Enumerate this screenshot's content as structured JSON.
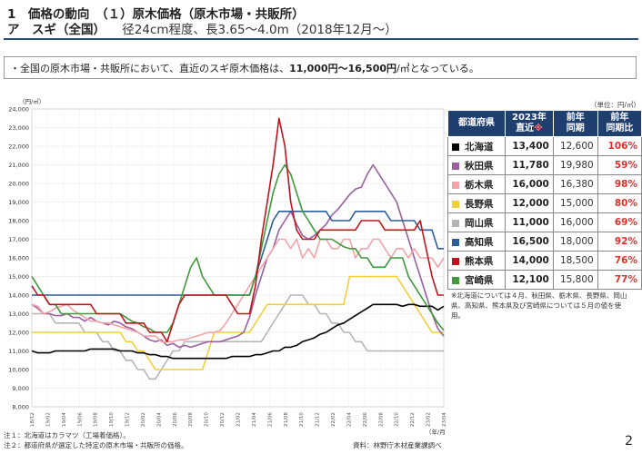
{
  "header": {
    "title_line1": "1　価格の動向　（１）原木価格（原木市場・共販所）",
    "title_line2_main": "ア　スギ（全国）",
    "title_line2_sub": "径24cm程度、長3.65～4.0m（2018年12月～）"
  },
  "summary": {
    "prefix": "・全国の原木市場・共販所において、直近のスギ原木価格は、",
    "highlight": "11,000円～16,500円",
    "suffix": "/㎥となっている。"
  },
  "chart_data": {
    "type": "line",
    "ylabel": "（円/㎥）",
    "ylim": [
      8000,
      24000
    ],
    "yticks": [
      8000,
      9000,
      10000,
      11000,
      12000,
      13000,
      14000,
      15000,
      16000,
      17000,
      18000,
      19000,
      20000,
      21000,
      22000,
      23000,
      24000
    ],
    "ytick_labels": [
      "8,000",
      "9,000",
      "10,000",
      "11,000",
      "12,000",
      "13,000",
      "14,000",
      "15,000",
      "16,000",
      "17,000",
      "18,000",
      "19,000",
      "20,000",
      "21,000",
      "22,000",
      "23,000",
      "24,000"
    ],
    "x_tick_labels": [
      "18/12",
      "19/02",
      "19/04",
      "19/06",
      "19/08",
      "19/10",
      "19/12",
      "20/02",
      "20/04",
      "20/06",
      "20/08",
      "20/10",
      "20/12",
      "21/02",
      "21/04",
      "21/06",
      "21/08",
      "21/10",
      "21/12",
      "22/02",
      "22/04",
      "22/06",
      "22/08",
      "22/10",
      "22/12",
      "23/02",
      "23/04"
    ],
    "xlabel_right": "（年/月）",
    "grid": true,
    "series": [
      {
        "name": "北海道",
        "color": "#000000",
        "values": [
          11000,
          10900,
          10900,
          10900,
          11000,
          11000,
          11000,
          11000,
          11000,
          11000,
          11100,
          11100,
          11100,
          11100,
          11100,
          11000,
          11000,
          11000,
          10900,
          10900,
          10800,
          10800,
          10700,
          10700,
          10600,
          10600,
          10600,
          10600,
          10600,
          10600,
          10600,
          10600,
          10600,
          10600,
          10700,
          10700,
          10700,
          10700,
          10800,
          10800,
          10900,
          11000,
          11000,
          11200,
          11200,
          11300,
          11500,
          11600,
          11700,
          11900,
          12000,
          12200,
          12400,
          12500,
          12700,
          12900,
          13100,
          13300,
          13500,
          13500,
          13500,
          13500,
          13500,
          13400,
          13500,
          13500,
          13400,
          13400,
          13400,
          13200,
          13400
        ]
      },
      {
        "name": "秋田県",
        "color": "#9a5fa0",
        "values": [
          13500,
          13300,
          13000,
          13000,
          12900,
          12900,
          13000,
          12800,
          12800,
          12600,
          12800,
          12600,
          12500,
          12400,
          12600,
          12500,
          12300,
          12200,
          12000,
          11800,
          11600,
          11500,
          11600,
          11300,
          11400,
          11200,
          11300,
          11200,
          11300,
          11400,
          11500,
          11500,
          11500,
          11600,
          11700,
          11800,
          12000,
          12800,
          14000,
          15000,
          16000,
          16500,
          17500,
          18000,
          18500,
          17800,
          17200,
          17000,
          17200,
          17500,
          17800,
          18300,
          18600,
          19000,
          19400,
          19700,
          19800,
          20500,
          21000,
          20500,
          20000,
          19500,
          19000,
          18000,
          17000,
          16000,
          15000,
          14000,
          13000,
          12200,
          11800
        ]
      },
      {
        "name": "栃木県",
        "color": "#f4a3a8",
        "values": [
          13500,
          13400,
          13000,
          13100,
          13300,
          13400,
          13500,
          13200,
          13000,
          12800,
          12600,
          12600,
          12500,
          12500,
          12400,
          12300,
          12200,
          12100,
          12000,
          11800,
          11800,
          11800,
          11500,
          11500,
          11500,
          11600,
          11600,
          11700,
          11800,
          11900,
          12000,
          12000,
          12100,
          12500,
          13000,
          13500,
          14000,
          14500,
          15000,
          15500,
          16000,
          16500,
          17000,
          17000,
          16500,
          17000,
          16000,
          16500,
          16000,
          17000,
          17000,
          16500,
          16500,
          17000,
          17000,
          16000,
          16500,
          16500,
          17000,
          17000,
          16500,
          16000,
          16500,
          16500,
          16000,
          16500,
          16000,
          16000,
          16000,
          15500,
          16000
        ]
      },
      {
        "name": "長野県",
        "color": "#f2cf3a",
        "values": [
          12000,
          12000,
          12000,
          12000,
          12000,
          12000,
          12000,
          12000,
          12000,
          12000,
          12000,
          12000,
          12000,
          12000,
          12000,
          12000,
          11500,
          11500,
          11000,
          11000,
          10500,
          10000,
          10000,
          10000,
          10000,
          10000,
          10000,
          10000,
          10000,
          10000,
          11000,
          12000,
          12000,
          12000,
          12000,
          12000,
          12000,
          12000,
          12500,
          13000,
          13500,
          13500,
          13500,
          13500,
          13500,
          13500,
          13500,
          13500,
          13500,
          13500,
          13500,
          13500,
          13500,
          13500,
          15000,
          15000,
          15000,
          15000,
          15000,
          15000,
          15000,
          15000,
          15000,
          14500,
          14000,
          13500,
          13000,
          12500,
          12000,
          12000,
          12000
        ]
      },
      {
        "name": "岡山県",
        "color": "#b5b5b5",
        "values": [
          13000,
          13000,
          13000,
          13000,
          12500,
          12500,
          12500,
          12500,
          12500,
          12000,
          12000,
          12000,
          11500,
          11500,
          11000,
          11000,
          10500,
          10500,
          10000,
          10000,
          9500,
          9500,
          10000,
          10500,
          11000,
          11000,
          11500,
          11500,
          11500,
          11500,
          11500,
          11500,
          11500,
          11500,
          11500,
          11500,
          11500,
          11500,
          11500,
          11500,
          12000,
          12500,
          13000,
          13500,
          14000,
          14000,
          14000,
          13500,
          13500,
          13000,
          13000,
          12500,
          12500,
          12000,
          12000,
          11500,
          11500,
          11000,
          11000,
          11000,
          11000,
          11000,
          11000,
          11000,
          11000,
          11000,
          11000,
          11000,
          11000,
          11000,
          11000
        ]
      },
      {
        "name": "高知県",
        "color": "#2f5f9b",
        "values": [
          14000,
          14000,
          14000,
          14000,
          14000,
          14000,
          14000,
          14000,
          14000,
          14000,
          14000,
          14000,
          14000,
          14000,
          14000,
          14000,
          14000,
          14000,
          14000,
          14000,
          14000,
          14000,
          14000,
          14000,
          14000,
          14000,
          14000,
          14000,
          14000,
          14000,
          14000,
          14000,
          14000,
          14000,
          14000,
          14000,
          14000,
          14000,
          15000,
          16000,
          17000,
          18000,
          18500,
          18500,
          18500,
          18500,
          18500,
          18500,
          18500,
          18500,
          18500,
          18000,
          18000,
          18000,
          18000,
          18500,
          18500,
          18500,
          18500,
          18500,
          18500,
          18000,
          18000,
          18000,
          18000,
          18000,
          17500,
          17500,
          17500,
          16500,
          16500
        ]
      },
      {
        "name": "熊本県",
        "color": "#c0141c",
        "values": [
          14500,
          14000,
          14000,
          13500,
          13500,
          13500,
          13500,
          13500,
          13500,
          13500,
          13500,
          13000,
          13000,
          13000,
          13000,
          13000,
          12500,
          12500,
          12500,
          12500,
          12000,
          12000,
          12000,
          11500,
          12500,
          13500,
          14000,
          14000,
          14000,
          14000,
          14000,
          14000,
          14000,
          14000,
          13500,
          13000,
          13000,
          13000,
          14500,
          17000,
          19000,
          21000,
          23500,
          22000,
          19000,
          17500,
          17000,
          17000,
          17000,
          17500,
          17500,
          17500,
          17500,
          17500,
          17500,
          17500,
          18000,
          18000,
          18000,
          18000,
          17500,
          17500,
          17500,
          17500,
          17500,
          17500,
          18000,
          16500,
          15000,
          14000,
          14000
        ]
      },
      {
        "name": "宮崎県",
        "color": "#3e9a3b",
        "values": [
          15000,
          14500,
          14000,
          13500,
          13500,
          13000,
          13000,
          13000,
          13000,
          13000,
          13000,
          13000,
          13000,
          13000,
          13000,
          13000,
          12800,
          12600,
          12500,
          12300,
          12200,
          12000,
          12000,
          12000,
          12500,
          13500,
          14500,
          15500,
          16000,
          15000,
          14500,
          14000,
          14000,
          14000,
          14000,
          14000,
          14000,
          14000,
          15000,
          16500,
          18000,
          19500,
          20500,
          21000,
          20500,
          19500,
          18500,
          18000,
          17500,
          17000,
          17000,
          17000,
          16800,
          16600,
          16500,
          16500,
          16000,
          16000,
          15500,
          15500,
          15500,
          16000,
          16000,
          16000,
          15000,
          14500,
          14000,
          13500,
          13000,
          12500,
          12100
        ]
      }
    ]
  },
  "legend": {
    "unit": "（単位：円/㎥）",
    "headers": {
      "pref": "都道府県",
      "cur_line1": "2023年",
      "cur_line2": "直近",
      "cur_mark": "※",
      "prev_line1": "前年",
      "prev_line2": "同期",
      "ratio_line1": "前年",
      "ratio_line2": "同期比"
    },
    "rows": [
      {
        "pref": "北海道",
        "color": "#000000",
        "current": "13,400",
        "prev": "12,600",
        "ratio": "106%"
      },
      {
        "pref": "秋田県",
        "color": "#9a5fa0",
        "current": "11,780",
        "prev": "19,980",
        "ratio": "59%"
      },
      {
        "pref": "栃木県",
        "color": "#f4a3a8",
        "current": "16,000",
        "prev": "16,380",
        "ratio": "98%"
      },
      {
        "pref": "長野県",
        "color": "#f2cf3a",
        "current": "12,000",
        "prev": "15,000",
        "ratio": "80%"
      },
      {
        "pref": "岡山県",
        "color": "#b5b5b5",
        "current": "11,000",
        "prev": "16,000",
        "ratio": "69%"
      },
      {
        "pref": "高知県",
        "color": "#2f5f9b",
        "current": "16,500",
        "prev": "18,000",
        "ratio": "92%"
      },
      {
        "pref": "熊本県",
        "color": "#c0141c",
        "current": "14,000",
        "prev": "18,500",
        "ratio": "76%"
      },
      {
        "pref": "宮崎県",
        "color": "#3e9a3b",
        "current": "12,100",
        "prev": "15,800",
        "ratio": "77%"
      }
    ]
  },
  "notes": {
    "side_note": "※北海道については４月、秋田県、栃木県、長野県、岡山県、高知県、熊本県及び宮崎県については５月の値を使用。",
    "foot1": "注１：北海道はカラマツ（工場着価格）。",
    "foot2": "注２：都道府県が選定した特定の原木市場・共販所の価格。",
    "source": "資料：林野庁木材産業課調べ",
    "page_number": "2"
  }
}
